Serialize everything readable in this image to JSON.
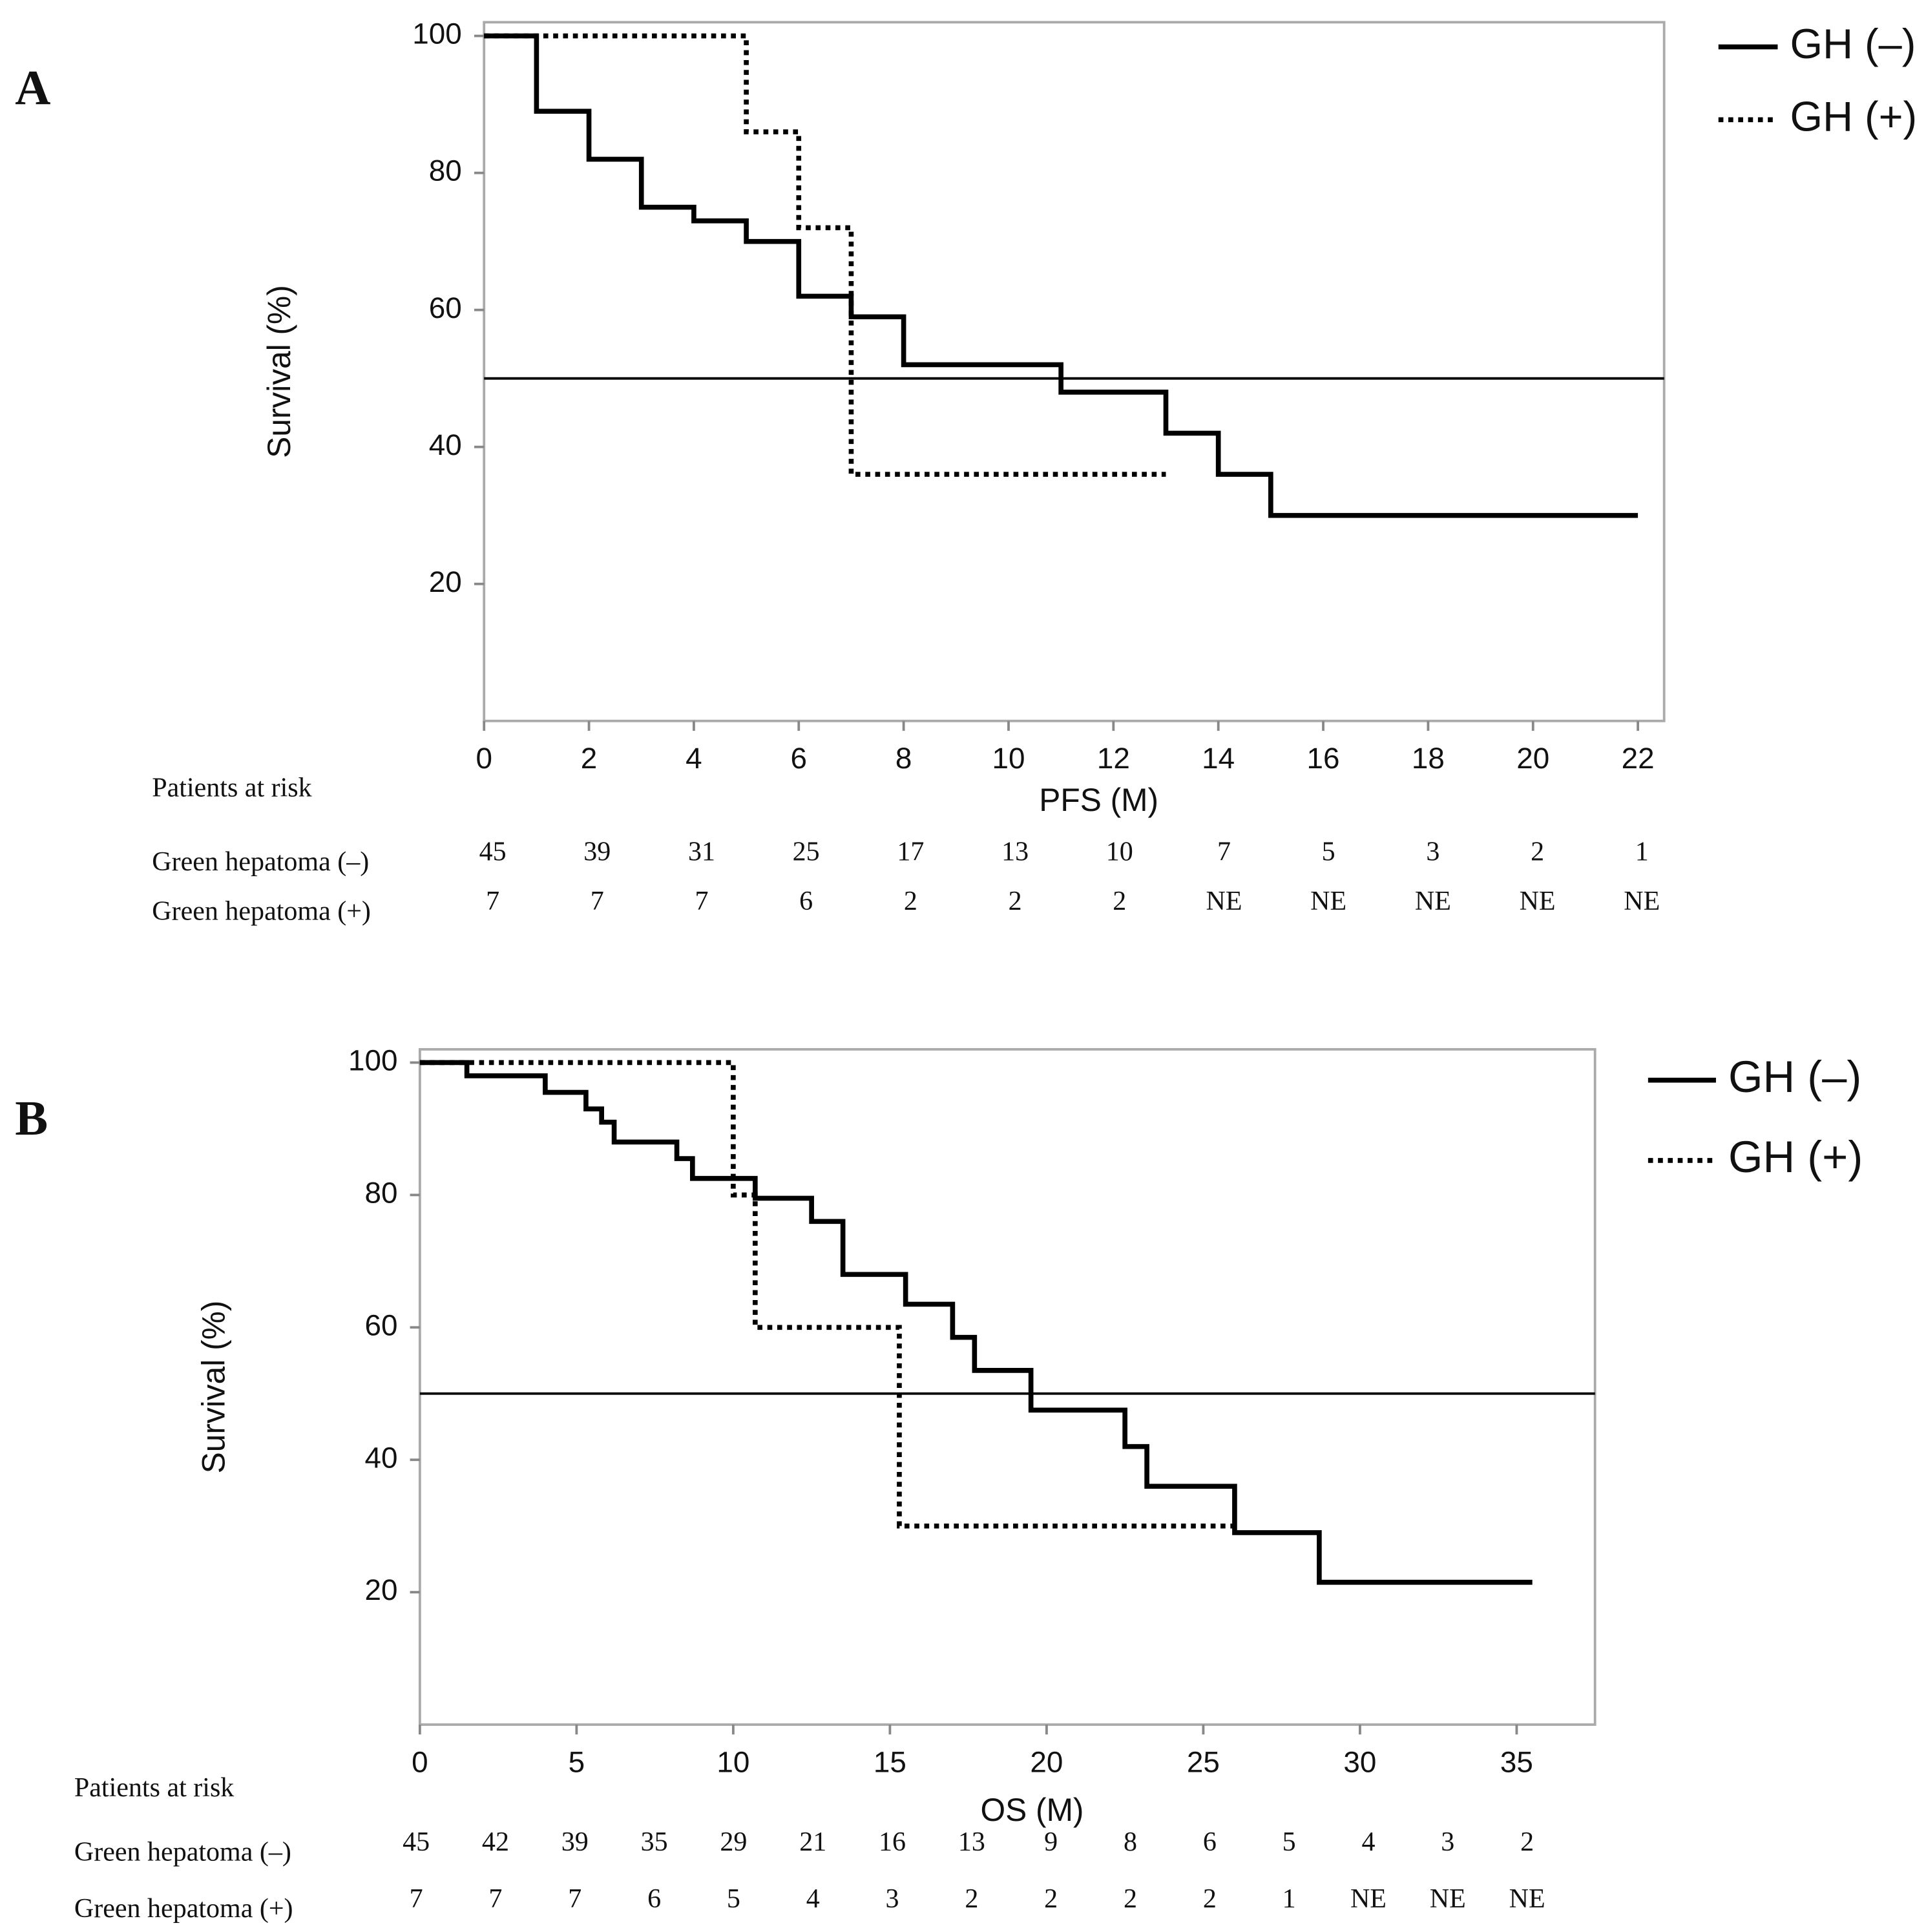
{
  "chart_data": [
    {
      "type": "step",
      "panel": "A",
      "x_label": "PFS (M)",
      "y_label": "Survival (%)",
      "xlim": [
        0,
        22.5
      ],
      "ylim": [
        0,
        102
      ],
      "xticks": [
        0,
        2,
        4,
        6,
        8,
        10,
        12,
        14,
        16,
        18,
        20,
        22
      ],
      "yticks": [
        20,
        40,
        60,
        80,
        100
      ],
      "reference_line": 50,
      "series": [
        {
          "name": "GH (–)",
          "color": "#000000",
          "line_style": "solid",
          "x": [
            0,
            1,
            2,
            3,
            4,
            5,
            6,
            7,
            8,
            11,
            13,
            14,
            15,
            22
          ],
          "values": [
            100,
            89,
            82,
            75,
            73,
            70,
            62,
            59,
            52,
            48,
            42,
            36,
            30,
            30
          ]
        },
        {
          "name": "GH (+)",
          "color": "#000000",
          "line_style": "dotted",
          "x": [
            0,
            5,
            6,
            7,
            13
          ],
          "values": [
            100,
            86,
            72,
            36,
            36
          ]
        }
      ],
      "risk_table": {
        "title": "Patients at risk",
        "rows": [
          {
            "label": "Green hepatoma (–)",
            "values": [
              45,
              39,
              31,
              25,
              17,
              13,
              10,
              7,
              5,
              3,
              2,
              1
            ]
          },
          {
            "label": "Green hepatoma (+)",
            "values": [
              7,
              7,
              7,
              6,
              2,
              2,
              2,
              "NE",
              "NE",
              "NE",
              "NE",
              "NE"
            ]
          }
        ]
      }
    },
    {
      "type": "step",
      "panel": "B",
      "x_label": "OS (M)",
      "y_label": "Survival (%)",
      "xlim": [
        0,
        37.5
      ],
      "ylim": [
        0,
        102
      ],
      "xticks": [
        0,
        5,
        10,
        15,
        20,
        25,
        30,
        35
      ],
      "yticks": [
        20,
        40,
        60,
        80,
        100
      ],
      "reference_line": 50,
      "series": [
        {
          "name": "GH (–)",
          "color": "#000000",
          "line_style": "solid",
          "x": [
            0,
            1.5,
            4,
            5.3,
            5.8,
            6.2,
            8.2,
            8.7,
            10.7,
            12.5,
            13.5,
            15.5,
            17,
            17.7,
            19.5,
            22.5,
            23.2,
            26,
            28.7,
            35.5
          ],
          "values": [
            100,
            98,
            95.5,
            93,
            91,
            88,
            85.5,
            82.5,
            79.5,
            76,
            68,
            63.5,
            58.5,
            53.5,
            47.5,
            42,
            36,
            29,
            21.5,
            21.5
          ]
        },
        {
          "name": "GH (+)",
          "color": "#000000",
          "line_style": "dotted",
          "x": [
            0,
            10,
            10.7,
            15.3,
            26
          ],
          "values": [
            100,
            80,
            60,
            30,
            30
          ]
        }
      ],
      "risk_table": {
        "title": "Patients at risk",
        "rows": [
          {
            "label": "Green hepatoma (–)",
            "values": [
              45,
              42,
              39,
              35,
              29,
              21,
              16,
              13,
              9,
              8,
              6,
              5,
              4,
              3,
              2
            ]
          },
          {
            "label": "Green hepatoma (+)",
            "values": [
              7,
              7,
              7,
              6,
              5,
              4,
              3,
              2,
              2,
              2,
              2,
              1,
              "NE",
              "NE",
              "NE"
            ]
          }
        ]
      }
    }
  ]
}
